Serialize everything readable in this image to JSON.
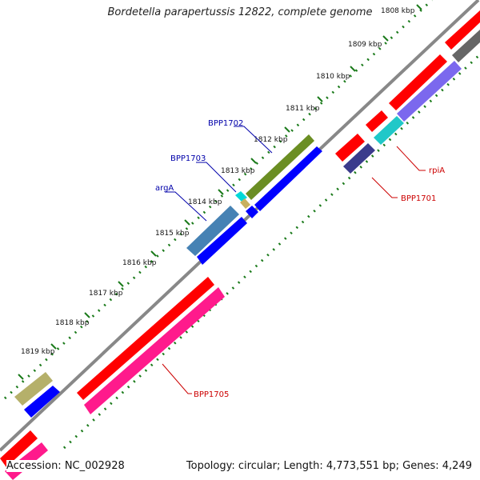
{
  "title": "Bordetella parapertussis 12822, complete genome",
  "footer": {
    "accession": "Accession: NC_002928",
    "stats": "Topology: circular; Length: 4,773,551 bp; Genes: 4,249"
  },
  "ticks": [
    "1808 kbp",
    "1809 kbp",
    "1810 kbp",
    "1811 kbp",
    "1812 kbp",
    "1813 kbp",
    "1814 kbp",
    "1815 kbp",
    "1816 kbp",
    "1817 kbp",
    "1818 kbp",
    "1819 kbp"
  ],
  "gene_labels": {
    "bpp1702": "BPP1702",
    "bpp1703": "BPP1703",
    "arga": "argA",
    "rpia": "rpiA",
    "bpp1701": "BPP1701",
    "bpp1705": "BPP1705"
  },
  "colors": {
    "label_blue": "#0000aa",
    "label_red": "#cc0000",
    "tick_green": "#1a7a1a",
    "backbone": "#888888"
  }
}
